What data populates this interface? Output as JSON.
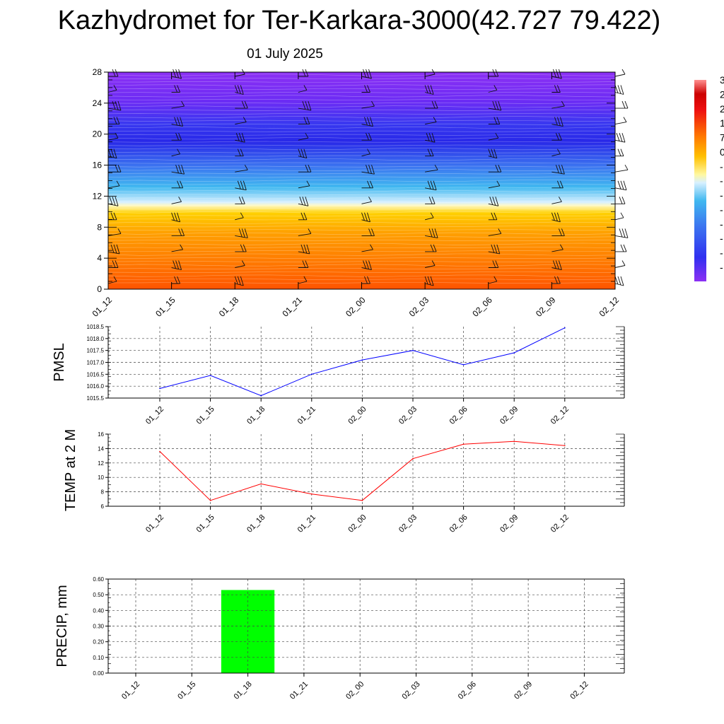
{
  "title": "Kazhydromet for Ter-Karkara-3000(42.727 79.422)",
  "date": "01 July 2025",
  "colorbar_labels": [
    "3",
    "2",
    "2",
    "1",
    "7",
    "0",
    "-",
    "-",
    "-",
    "-",
    "-",
    "-",
    "-",
    "-"
  ],
  "colors": {
    "pmsl_line": "#0000ff",
    "temp_line": "#ff0000",
    "precip_bar": "#00ff00",
    "grid": "#444444"
  },
  "chart_data": [
    {
      "type": "heatmap",
      "name_hint": "vertical-profile",
      "x_ticks": [
        "01_12",
        "01_15",
        "01_18",
        "01_21",
        "02_00",
        "02_03",
        "02_06",
        "02_09",
        "02_12"
      ],
      "y_ticks": [
        "0",
        "4",
        "8",
        "12",
        "16",
        "20",
        "24",
        "28"
      ],
      "ylim": [
        0,
        28
      ],
      "temperature_bands": [
        {
          "from": 0,
          "to": 3,
          "value": 15
        },
        {
          "from": 3,
          "to": 6,
          "value": 10
        },
        {
          "from": 6,
          "to": 9,
          "value": 5
        },
        {
          "from": 9,
          "to": 11,
          "value": 1
        },
        {
          "from": 11,
          "to": 13,
          "value": -5
        },
        {
          "from": 13,
          "to": 16,
          "value": -15
        },
        {
          "from": 16,
          "to": 19,
          "value": -30
        },
        {
          "from": 19,
          "to": 22,
          "value": -45
        },
        {
          "from": 22,
          "to": 28,
          "value": -55
        }
      ]
    },
    {
      "type": "line",
      "ylabel": "PMSL",
      "categories": [
        "01_12",
        "01_15",
        "01_18",
        "01_21",
        "02_00",
        "02_03",
        "02_06",
        "02_09",
        "02_12"
      ],
      "values": [
        1015.9,
        1016.45,
        1015.6,
        1016.5,
        1017.1,
        1017.5,
        1016.9,
        1017.4,
        1018.45
      ],
      "ylim": [
        1015.5,
        1018.5
      ],
      "y_ticks": [
        "1015.5",
        "1016.0",
        "1016.5",
        "1017.0",
        "1017.5",
        "1018.0",
        "1018.5"
      ],
      "grid": true
    },
    {
      "type": "line",
      "ylabel": "TEMP at 2 M",
      "categories": [
        "01_12",
        "01_15",
        "01_18",
        "01_21",
        "02_00",
        "02_03",
        "02_06",
        "02_09",
        "02_12"
      ],
      "values": [
        13.6,
        6.8,
        9.1,
        7.7,
        6.8,
        12.6,
        14.6,
        15.0,
        14.4
      ],
      "ylim": [
        6,
        16
      ],
      "y_ticks": [
        "6",
        "8",
        "10",
        "12",
        "14",
        "16"
      ],
      "grid": true
    },
    {
      "type": "bar",
      "ylabel": "PRECIP, mm",
      "categories": [
        "01_12",
        "01_15",
        "01_18",
        "01_21",
        "02_00",
        "02_03",
        "02_06",
        "02_09",
        "02_12"
      ],
      "values": [
        0,
        0,
        0.53,
        0,
        0,
        0,
        0,
        0,
        0
      ],
      "ylim": [
        0,
        0.6
      ],
      "y_ticks": [
        "0.00",
        "0.10",
        "0.20",
        "0.30",
        "0.40",
        "0.50",
        "0.60"
      ],
      "grid": true
    }
  ]
}
